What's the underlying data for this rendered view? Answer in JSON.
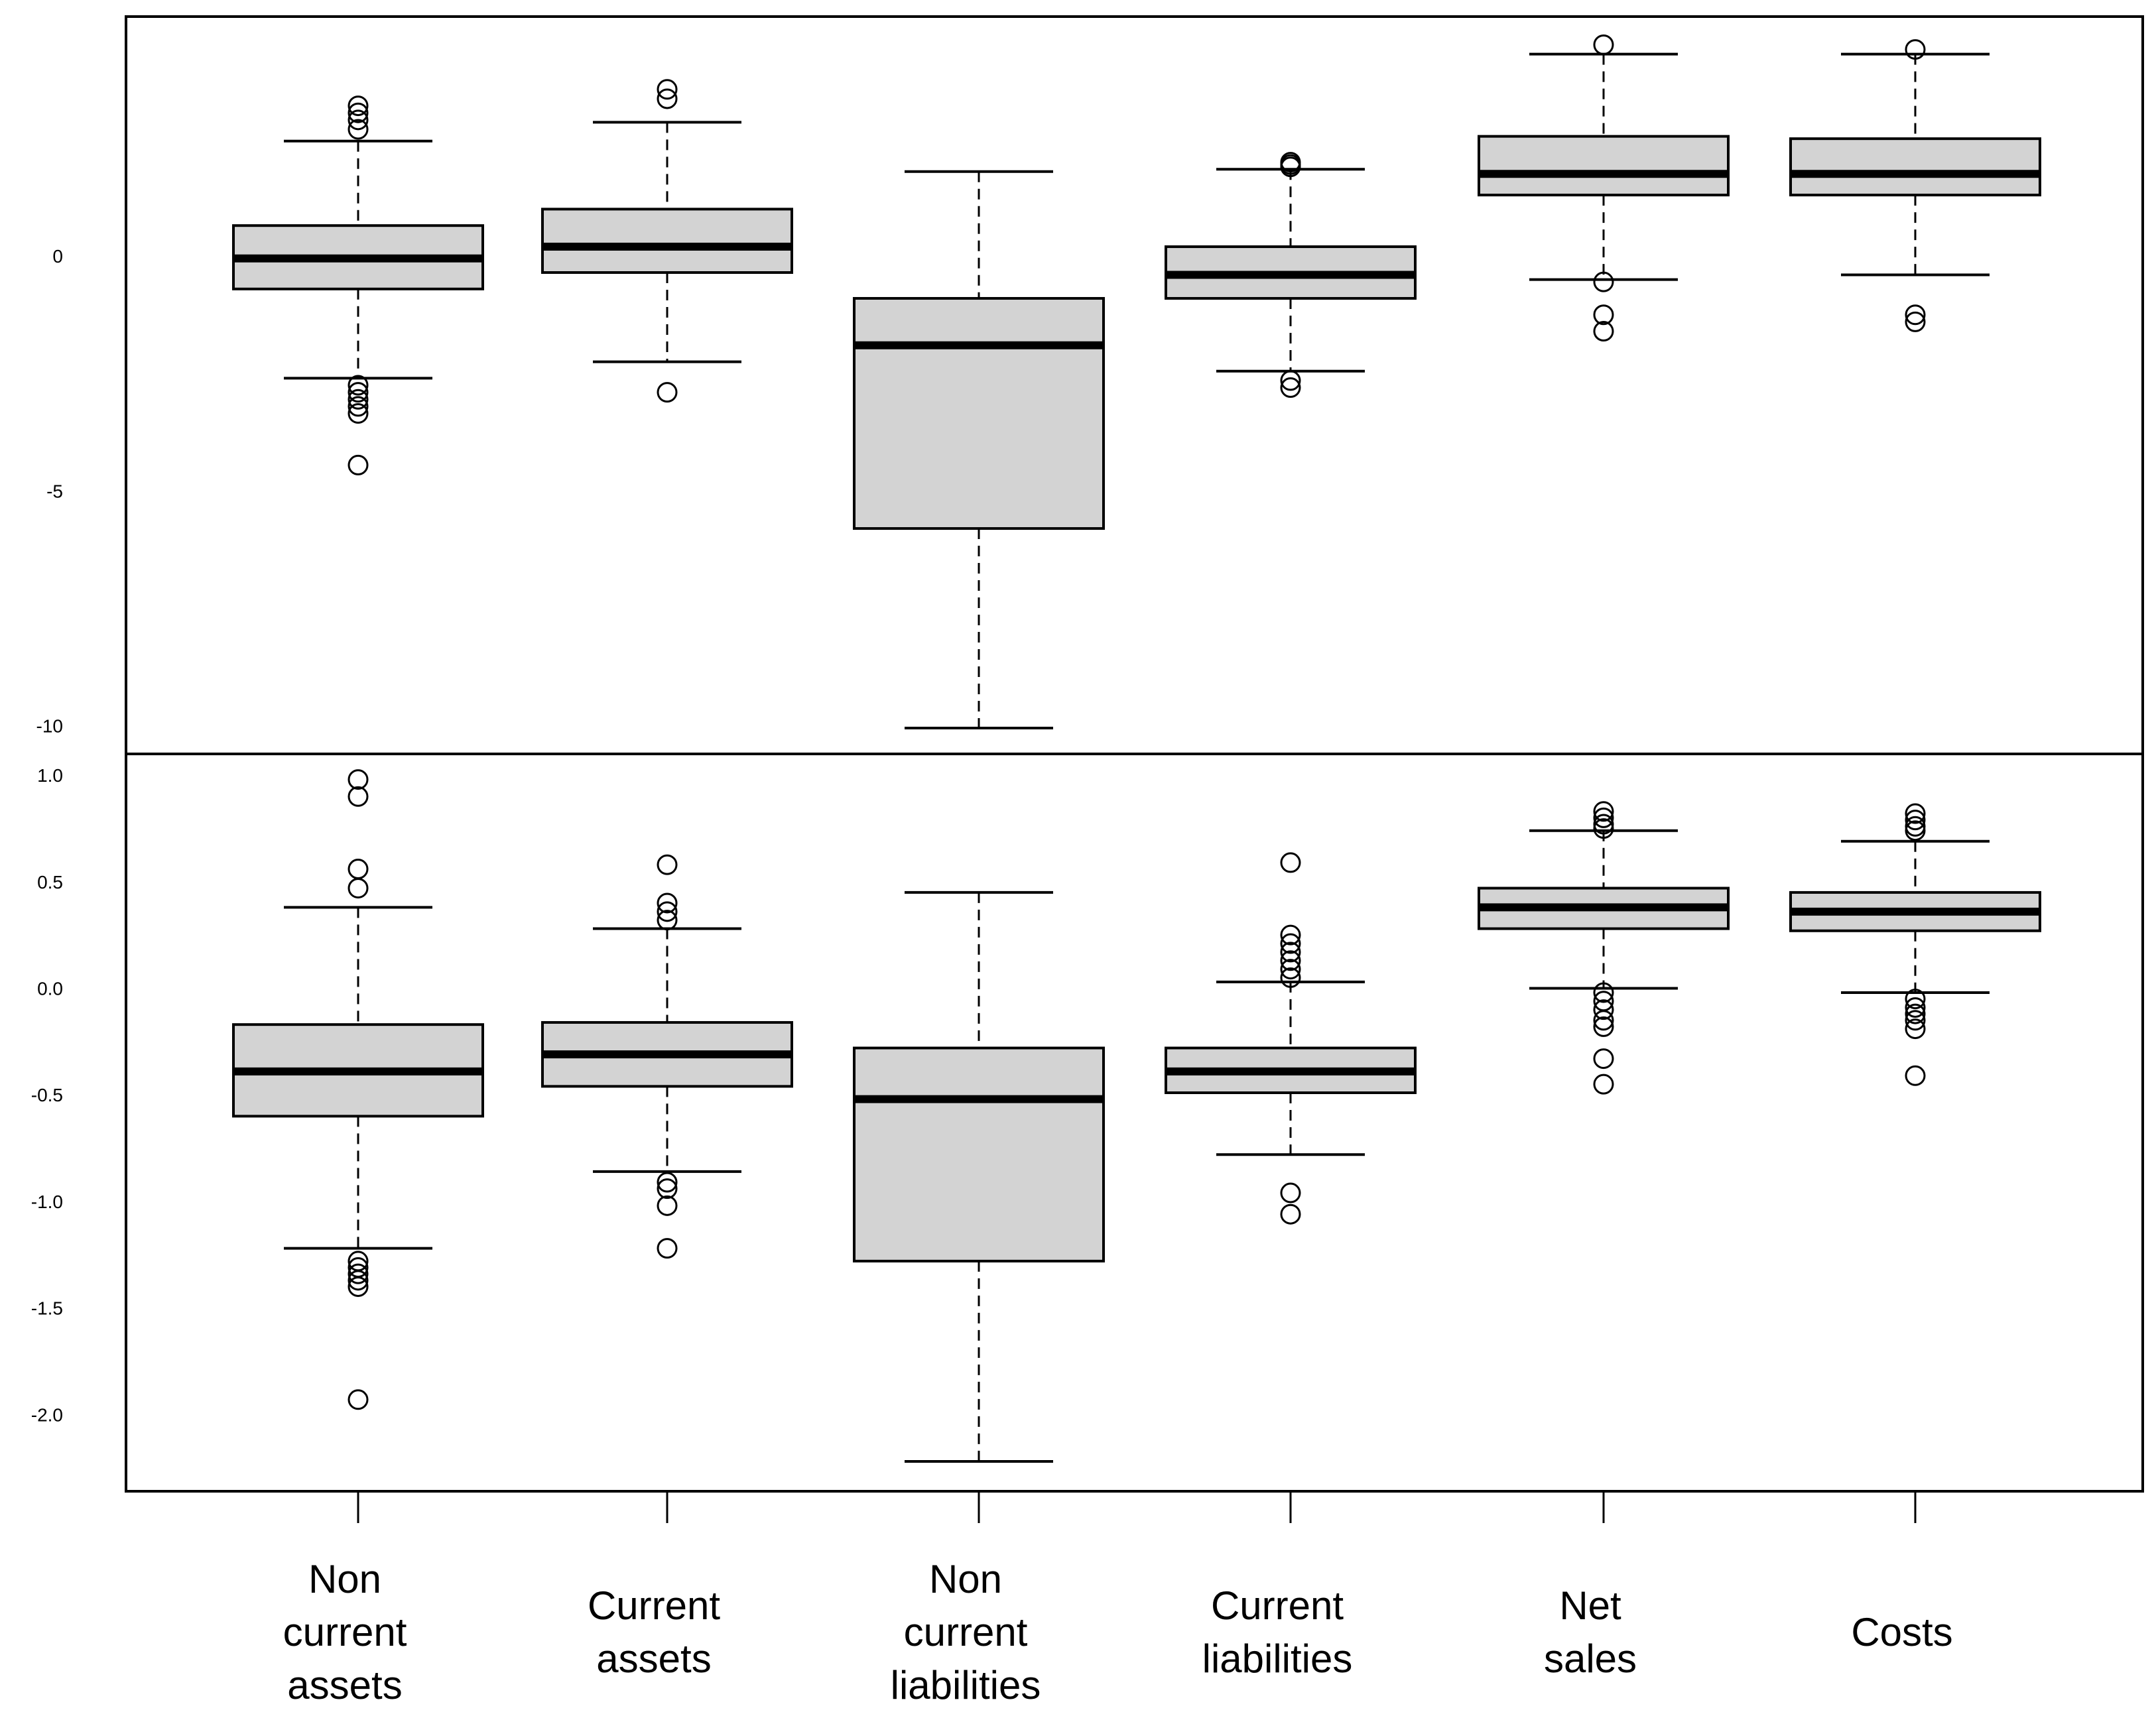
{
  "chart_data": [
    {
      "type": "boxplot",
      "panel": "top",
      "title": "",
      "xlabel": "",
      "ylabel": "",
      "ylim": [
        -10.6,
        5.1
      ],
      "yticks": [
        {
          "value": 0,
          "label": "0"
        },
        {
          "value": -5,
          "label": "-5"
        },
        {
          "value": -10,
          "label": "-10"
        }
      ],
      "series": [
        {
          "name": "Non current assets",
          "whisker_low": -2.6,
          "q1": -0.7,
          "median": -0.05,
          "q3": 0.65,
          "whisker_high": 2.45,
          "outliers": [
            3.2,
            3.05,
            2.9,
            2.7,
            -2.75,
            -2.9,
            -3.05,
            -3.2,
            -3.35,
            -4.45
          ]
        },
        {
          "name": "Current assets",
          "whisker_low": -2.25,
          "q1": -0.35,
          "median": 0.2,
          "q3": 1.0,
          "whisker_high": 2.85,
          "outliers": [
            3.55,
            3.35,
            -2.9
          ]
        },
        {
          "name": "Non current liabilities",
          "whisker_low": -10.05,
          "q1": -5.8,
          "median": -1.9,
          "q3": -0.9,
          "whisker_high": 1.8,
          "outliers": []
        },
        {
          "name": "Current liabilities",
          "whisker_low": -2.45,
          "q1": -0.9,
          "median": -0.4,
          "q3": 0.2,
          "whisker_high": 1.85,
          "outliers": [
            2.0,
            1.95,
            1.9,
            -2.65,
            -2.8
          ]
        },
        {
          "name": "Net sales",
          "whisker_low": -0.5,
          "q1": 1.3,
          "median": 1.75,
          "q3": 2.55,
          "whisker_high": 4.3,
          "outliers": [
            4.5,
            -0.55,
            -1.25,
            -1.6
          ]
        },
        {
          "name": "Costs",
          "whisker_low": -0.4,
          "q1": 1.3,
          "median": 1.75,
          "q3": 2.5,
          "whisker_high": 4.3,
          "outliers": [
            4.4,
            -1.25,
            -1.4
          ]
        }
      ]
    },
    {
      "type": "boxplot",
      "panel": "bottom",
      "title": "",
      "xlabel": "",
      "ylabel": "",
      "ylim": [
        -2.36,
        1.1
      ],
      "yticks": [
        {
          "value": 1.0,
          "label": "1.0"
        },
        {
          "value": 0.5,
          "label": "0.5"
        },
        {
          "value": 0.0,
          "label": "0.0"
        },
        {
          "value": -0.5,
          "label": "-0.5"
        },
        {
          "value": -1.0,
          "label": "-1.0"
        },
        {
          "value": -1.5,
          "label": "-1.5"
        },
        {
          "value": -2.0,
          "label": "-2.0"
        }
      ],
      "series": [
        {
          "name": "Non current assets",
          "whisker_low": -1.22,
          "q1": -0.6,
          "median": -0.39,
          "q3": -0.17,
          "whisker_high": 0.38,
          "outliers": [
            0.98,
            0.9,
            0.56,
            0.47,
            -1.28,
            -1.31,
            -1.34,
            -1.37,
            -1.4,
            -1.93
          ]
        },
        {
          "name": "Current assets",
          "whisker_low": -0.86,
          "q1": -0.46,
          "median": -0.31,
          "q3": -0.16,
          "whisker_high": 0.28,
          "outliers": [
            0.58,
            0.4,
            0.36,
            0.32,
            -0.91,
            -0.94,
            -1.02,
            -1.22
          ]
        },
        {
          "name": "Non current liabilities",
          "whisker_low": -2.22,
          "q1": -1.28,
          "median": -0.52,
          "q3": -0.28,
          "whisker_high": 0.45,
          "outliers": []
        },
        {
          "name": "Current liabilities",
          "whisker_low": -0.78,
          "q1": -0.49,
          "median": -0.39,
          "q3": -0.28,
          "whisker_high": 0.03,
          "outliers": [
            0.59,
            0.25,
            0.21,
            0.17,
            0.13,
            0.09,
            0.05,
            -0.96,
            -1.06
          ]
        },
        {
          "name": "Net sales",
          "whisker_low": 0.0,
          "q1": 0.28,
          "median": 0.38,
          "q3": 0.47,
          "whisker_high": 0.74,
          "outliers": [
            0.83,
            0.8,
            0.77,
            0.75,
            -0.02,
            -0.06,
            -0.1,
            -0.15,
            -0.18,
            -0.33,
            -0.45
          ]
        },
        {
          "name": "Costs",
          "whisker_low": -0.02,
          "q1": 0.27,
          "median": 0.36,
          "q3": 0.45,
          "whisker_high": 0.69,
          "outliers": [
            0.82,
            0.79,
            0.76,
            0.74,
            -0.05,
            -0.09,
            -0.12,
            -0.15,
            -0.19,
            -0.41
          ]
        }
      ]
    }
  ],
  "categories": [
    {
      "lines": [
        "Non",
        "current",
        "assets"
      ]
    },
    {
      "lines": [
        "Current",
        "assets"
      ]
    },
    {
      "lines": [
        "Non",
        "current",
        "liabilities"
      ]
    },
    {
      "lines": [
        "Current",
        "liabilities"
      ]
    },
    {
      "lines": [
        "Net",
        "sales"
      ]
    },
    {
      "lines": [
        "Costs"
      ]
    }
  ],
  "colors": {
    "box_fill": "#d3d3d3",
    "stroke": "#000000",
    "background": "#ffffff"
  }
}
